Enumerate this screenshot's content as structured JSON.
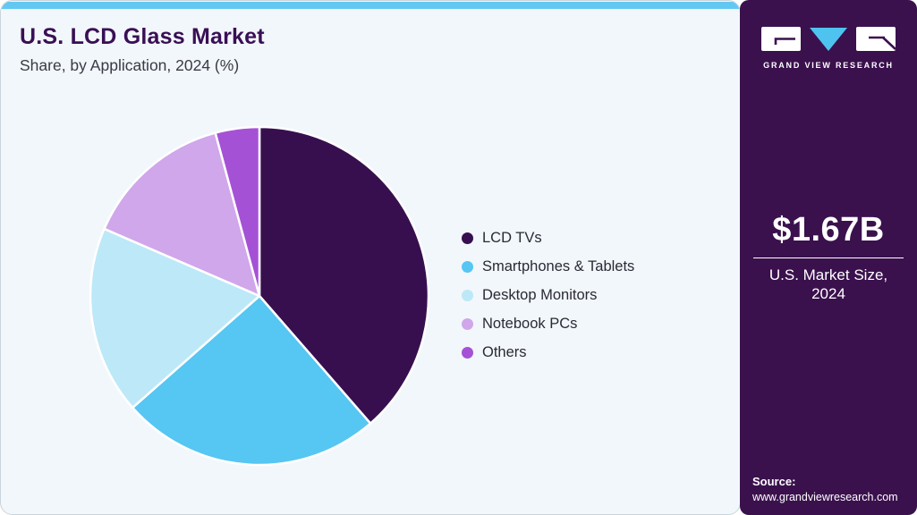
{
  "header": {
    "title": "U.S. LCD Glass Market",
    "subtitle": "Share, by Application, 2024 (%)"
  },
  "chart_data": {
    "type": "pie",
    "title": "U.S. LCD Glass Market",
    "subtitle": "Share, by Application, 2024 (%)",
    "unit": "percent share (values estimated from slice angles, not labeled on chart)",
    "legend_position": "right",
    "start_angle": "12 o'clock, clockwise",
    "items": [
      {
        "label": "LCD TVs",
        "value": 38.6,
        "color": "#370F4F"
      },
      {
        "label": "Smartphones & Tablets",
        "value": 24.9,
        "color": "#56C6F2"
      },
      {
        "label": "Desktop Monitors",
        "value": 18.0,
        "color": "#BDE8F8"
      },
      {
        "label": "Notebook PCs",
        "value": 14.3,
        "color": "#D0A7EA"
      },
      {
        "label": "Others",
        "value": 4.2,
        "color": "#A551D6"
      }
    ]
  },
  "sidebar": {
    "logo_text": "GRAND VIEW RESEARCH",
    "market_size_value": "$1.67B",
    "market_size_label": "U.S. Market Size, 2024",
    "source_label": "Source:",
    "source_url": "www.grandviewresearch.com"
  },
  "colors": {
    "accent_strip": "#63C8F1",
    "card_bg": "#F2F7FB",
    "card_border": "#C9D4DA",
    "title_text": "#3A0F55",
    "subtitle_text": "#3A3A45",
    "legend_text": "#2A2A35",
    "sidebar_bg": "#3A114D",
    "logo_triangle": "#4FC3F0",
    "slice_stroke": "#FFFFFF"
  }
}
